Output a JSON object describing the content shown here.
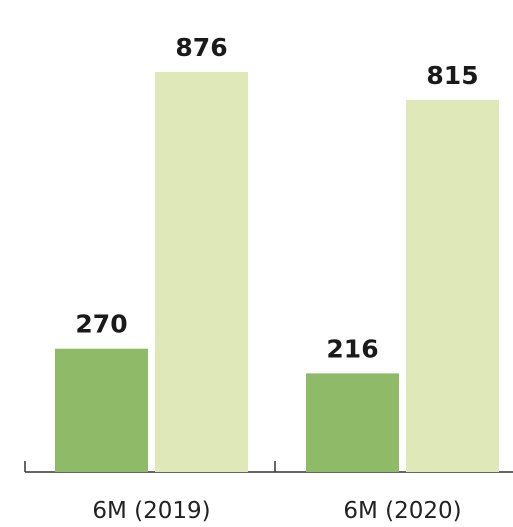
{
  "chart_data": {
    "type": "bar",
    "categories": [
      "6M (2019)",
      "6M (2020)"
    ],
    "series": [
      {
        "color": "#8fbb68",
        "values": [
          270,
          216
        ]
      },
      {
        "color": "#dfe8b9",
        "values": [
          876,
          815
        ]
      }
    ]
  }
}
